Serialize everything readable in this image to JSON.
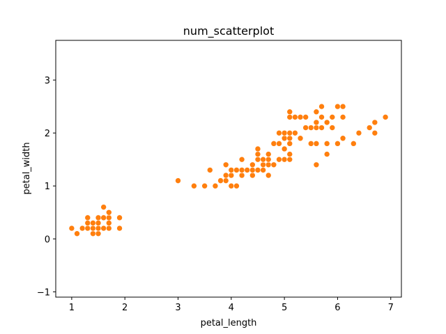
{
  "chart_data": {
    "type": "scatter",
    "title": "num_scatterplot",
    "xlabel": "petal_length",
    "ylabel": "petal_width",
    "xlim": [
      0.7,
      7.2
    ],
    "ylim": [
      -1.1,
      3.75
    ],
    "xticks": [
      1,
      2,
      3,
      4,
      5,
      6,
      7
    ],
    "yticks": [
      -1,
      0,
      1,
      2,
      3
    ],
    "grid": false,
    "marker_color": "#ff7f0e",
    "points": [
      [
        1.0,
        0.2
      ],
      [
        1.1,
        0.1
      ],
      [
        1.2,
        0.2
      ],
      [
        1.3,
        0.2
      ],
      [
        1.3,
        0.3
      ],
      [
        1.3,
        0.4
      ],
      [
        1.4,
        0.1
      ],
      [
        1.4,
        0.2
      ],
      [
        1.4,
        0.3
      ],
      [
        1.5,
        0.1
      ],
      [
        1.5,
        0.2
      ],
      [
        1.5,
        0.3
      ],
      [
        1.5,
        0.4
      ],
      [
        1.6,
        0.2
      ],
      [
        1.6,
        0.4
      ],
      [
        1.6,
        0.6
      ],
      [
        1.7,
        0.2
      ],
      [
        1.7,
        0.3
      ],
      [
        1.7,
        0.4
      ],
      [
        1.7,
        0.5
      ],
      [
        1.9,
        0.2
      ],
      [
        1.9,
        0.4
      ],
      [
        3.0,
        1.1
      ],
      [
        3.3,
        1.0
      ],
      [
        3.5,
        1.0
      ],
      [
        3.6,
        1.3
      ],
      [
        3.7,
        1.0
      ],
      [
        3.8,
        1.1
      ],
      [
        3.9,
        1.1
      ],
      [
        3.9,
        1.2
      ],
      [
        3.9,
        1.4
      ],
      [
        4.0,
        1.0
      ],
      [
        4.0,
        1.2
      ],
      [
        4.0,
        1.3
      ],
      [
        4.1,
        1.0
      ],
      [
        4.1,
        1.3
      ],
      [
        4.2,
        1.2
      ],
      [
        4.2,
        1.3
      ],
      [
        4.2,
        1.5
      ],
      [
        4.3,
        1.3
      ],
      [
        4.4,
        1.2
      ],
      [
        4.4,
        1.3
      ],
      [
        4.4,
        1.4
      ],
      [
        4.5,
        1.3
      ],
      [
        4.5,
        1.5
      ],
      [
        4.5,
        1.6
      ],
      [
        4.5,
        1.7
      ],
      [
        4.6,
        1.3
      ],
      [
        4.6,
        1.4
      ],
      [
        4.6,
        1.5
      ],
      [
        4.7,
        1.2
      ],
      [
        4.7,
        1.4
      ],
      [
        4.7,
        1.5
      ],
      [
        4.7,
        1.6
      ],
      [
        4.8,
        1.4
      ],
      [
        4.8,
        1.8
      ],
      [
        4.9,
        1.5
      ],
      [
        4.9,
        1.8
      ],
      [
        4.9,
        2.0
      ],
      [
        5.0,
        1.5
      ],
      [
        5.0,
        1.7
      ],
      [
        5.0,
        1.9
      ],
      [
        5.0,
        2.0
      ],
      [
        5.1,
        1.5
      ],
      [
        5.1,
        1.6
      ],
      [
        5.1,
        1.8
      ],
      [
        5.1,
        1.9
      ],
      [
        5.1,
        2.0
      ],
      [
        5.1,
        2.3
      ],
      [
        5.1,
        2.4
      ],
      [
        5.2,
        2.0
      ],
      [
        5.2,
        2.3
      ],
      [
        5.3,
        1.9
      ],
      [
        5.3,
        2.3
      ],
      [
        5.4,
        2.1
      ],
      [
        5.4,
        2.3
      ],
      [
        5.5,
        1.8
      ],
      [
        5.5,
        2.1
      ],
      [
        5.6,
        1.4
      ],
      [
        5.6,
        1.8
      ],
      [
        5.6,
        2.1
      ],
      [
        5.6,
        2.2
      ],
      [
        5.6,
        2.4
      ],
      [
        5.7,
        2.1
      ],
      [
        5.7,
        2.3
      ],
      [
        5.7,
        2.5
      ],
      [
        5.8,
        1.6
      ],
      [
        5.8,
        1.8
      ],
      [
        5.8,
        2.2
      ],
      [
        5.9,
        2.1
      ],
      [
        5.9,
        2.3
      ],
      [
        6.0,
        1.8
      ],
      [
        6.0,
        2.5
      ],
      [
        6.1,
        1.9
      ],
      [
        6.1,
        2.3
      ],
      [
        6.1,
        2.5
      ],
      [
        6.3,
        1.8
      ],
      [
        6.4,
        2.0
      ],
      [
        6.6,
        2.1
      ],
      [
        6.7,
        2.0
      ],
      [
        6.7,
        2.2
      ],
      [
        6.9,
        2.3
      ]
    ]
  }
}
